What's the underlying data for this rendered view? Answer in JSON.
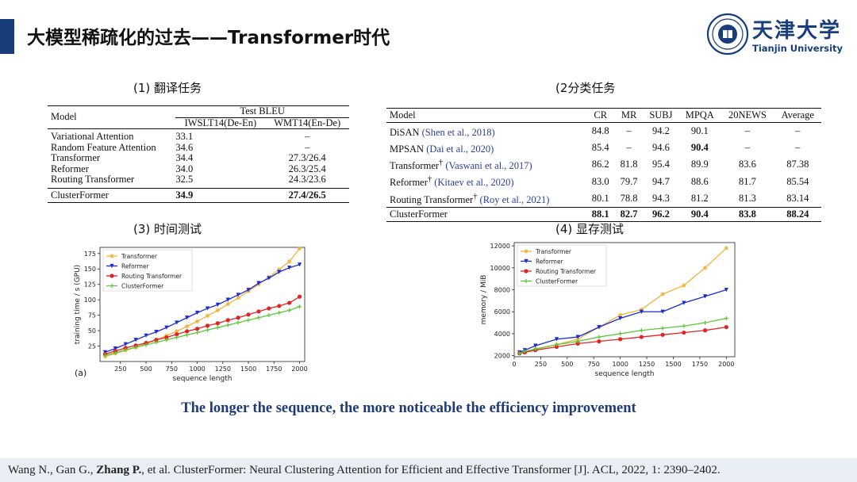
{
  "slide": {
    "title": "大模型稀疏化的过去——Transformer时代",
    "logo": {
      "cn": "天津大学",
      "en": "Tianjin University"
    },
    "sections": {
      "s1": "(1) 翻译任务",
      "s2": "(2分类任务",
      "s3": "(3) 时间测试",
      "s4": "(4) 显存测试"
    },
    "conclusion": "The longer the sequence, the more noticeable the efficiency improvement",
    "reference": {
      "pre": "Wang N., Gan G., ",
      "bold": "Zhang P.",
      "post": ", et al. ClusterFormer: Neural Clustering Attention for Efficient and Effective Transformer [J]. ACL, 2022, 1: 2390–2402."
    }
  },
  "table1": {
    "header_model": "Model",
    "header_group": "Test BLEU",
    "cols": [
      "IWSLT14(De-En)",
      "WMT14(En-De)"
    ],
    "rows": [
      {
        "model": "Variational Attention",
        "a": "33.1",
        "b": "–"
      },
      {
        "model": "Random Feature Attention",
        "a": "34.6",
        "b": "–"
      },
      {
        "model": "Transformer",
        "a": "34.4",
        "b": "27.3/26.4"
      },
      {
        "model": "Reformer",
        "a": "34.0",
        "b": "26.3/25.4"
      },
      {
        "model": "Routing Transformer",
        "a": "32.5",
        "b": "24.3/23.6"
      }
    ],
    "final": {
      "model": "ClusterFormer",
      "a": "34.9",
      "b": "27.4/26.5"
    }
  },
  "table2": {
    "headers": [
      "Model",
      "CR",
      "MR",
      "SUBJ",
      "MPQA",
      "20NEWS",
      "Average"
    ],
    "rows": [
      {
        "model": "DiSAN",
        "sup": "",
        "cite": "(Shen et al., 2018)",
        "vals": [
          "84.8",
          "–",
          "94.2",
          "90.1",
          "–",
          "–"
        ]
      },
      {
        "model": "MPSAN",
        "sup": "",
        "cite": "(Dai et al., 2020)",
        "vals": [
          "85.4",
          "–",
          "94.6",
          "90.4",
          "–",
          "–"
        ]
      },
      {
        "model": "Transformer",
        "sup": "†",
        "cite": "(Vaswani et al., 2017)",
        "vals": [
          "86.2",
          "81.8",
          "95.4",
          "89.9",
          "83.6",
          "87.38"
        ]
      },
      {
        "model": "Reformer",
        "sup": "†",
        "cite": "(Kitaev et al., 2020)",
        "vals": [
          "83.0",
          "79.7",
          "94.7",
          "88.6",
          "81.7",
          "85.54"
        ]
      },
      {
        "model": "Routing Transformer",
        "sup": "†",
        "cite": "(Roy et al., 2021)",
        "vals": [
          "80.1",
          "78.8",
          "94.3",
          "81.2",
          "81.3",
          "83.14"
        ]
      }
    ],
    "final": {
      "model": "ClusterFormer",
      "vals": [
        "88.1",
        "82.7",
        "96.2",
        "90.4",
        "83.8",
        "88.24"
      ]
    }
  },
  "chart_data": [
    {
      "type": "line",
      "title": "",
      "panel_label": "(a)",
      "xlabel": "sequence length",
      "ylabel": "training time / s (GPU)",
      "xlim": [
        50,
        2050
      ],
      "ylim": [
        0,
        185
      ],
      "xticks": [
        250,
        500,
        750,
        1000,
        1250,
        1500,
        1750,
        2000
      ],
      "yticks": [
        25,
        50,
        75,
        100,
        125,
        150,
        175
      ],
      "legend": "top-left",
      "x": [
        100,
        200,
        300,
        400,
        500,
        600,
        700,
        800,
        900,
        1000,
        1100,
        1200,
        1300,
        1400,
        1500,
        1600,
        1700,
        1800,
        1900,
        2000
      ],
      "series": [
        {
          "name": "Transformer",
          "color": "#f0b43c",
          "marker": "star",
          "values": [
            8,
            13,
            18,
            23,
            29,
            35,
            42,
            49,
            57,
            65,
            74,
            83,
            93,
            103,
            114,
            125,
            137,
            149,
            162,
            183
          ]
        },
        {
          "name": "Reformer",
          "color": "#1a2bd6",
          "marker": "triangle-down",
          "values": [
            15,
            21,
            28,
            35,
            42,
            48,
            55,
            63,
            71,
            79,
            86,
            92,
            100,
            108,
            116,
            127,
            135,
            145,
            152,
            157
          ]
        },
        {
          "name": "Routing Transformer",
          "color": "#e32323",
          "marker": "circle",
          "values": [
            12,
            17,
            22,
            26,
            30,
            35,
            39,
            44,
            49,
            53,
            58,
            62,
            67,
            71,
            76,
            81,
            86,
            90,
            95,
            105
          ]
        },
        {
          "name": "ClusterFormer",
          "color": "#5fc63b",
          "marker": "plus",
          "values": [
            10,
            14,
            19,
            23,
            27,
            31,
            35,
            39,
            43,
            47,
            51,
            55,
            59,
            63,
            67,
            71,
            75,
            79,
            83,
            89
          ]
        }
      ]
    },
    {
      "type": "line",
      "title": "",
      "xlabel": "sequence length",
      "ylabel": "memory / MiB",
      "xlim": [
        0,
        2080
      ],
      "ylim": [
        1900,
        12300
      ],
      "xticks": [
        0,
        250,
        500,
        750,
        1000,
        1250,
        1500,
        1750,
        2000
      ],
      "yticks": [
        2000,
        4000,
        6000,
        8000,
        10000,
        12000
      ],
      "legend": "top-left",
      "series": [
        {
          "name": "Transformer",
          "color": "#f0b43c",
          "marker": "star",
          "x": [
            100,
            200,
            400,
            600,
            800,
            1000,
            1200,
            1400,
            1600,
            1800,
            2000
          ],
          "values": [
            2300,
            2600,
            3000,
            3500,
            4600,
            5700,
            6200,
            7600,
            8400,
            10000,
            11800
          ]
        },
        {
          "name": "Reformer",
          "color": "#1a2bd6",
          "marker": "triangle-down",
          "x": [
            50,
            100,
            200,
            400,
            600,
            800,
            1000,
            1200,
            1400,
            1600,
            1800,
            2000
          ],
          "values": [
            2300,
            2500,
            2900,
            3500,
            3700,
            4600,
            5400,
            6000,
            6000,
            6800,
            7400,
            8000
          ]
        },
        {
          "name": "Routing Transformer",
          "color": "#e32323",
          "marker": "circle",
          "x": [
            50,
            100,
            200,
            400,
            600,
            800,
            1000,
            1200,
            1400,
            1600,
            1800,
            2000
          ],
          "values": [
            2200,
            2300,
            2500,
            2800,
            3100,
            3300,
            3500,
            3700,
            3900,
            4100,
            4300,
            4600
          ]
        },
        {
          "name": "ClusterFormer",
          "color": "#5fc63b",
          "marker": "plus",
          "x": [
            50,
            100,
            200,
            400,
            600,
            800,
            1000,
            1200,
            1400,
            1600,
            1800,
            2000
          ],
          "values": [
            2200,
            2400,
            2600,
            3000,
            3300,
            3700,
            4000,
            4300,
            4500,
            4700,
            5000,
            5400
          ]
        }
      ]
    }
  ]
}
